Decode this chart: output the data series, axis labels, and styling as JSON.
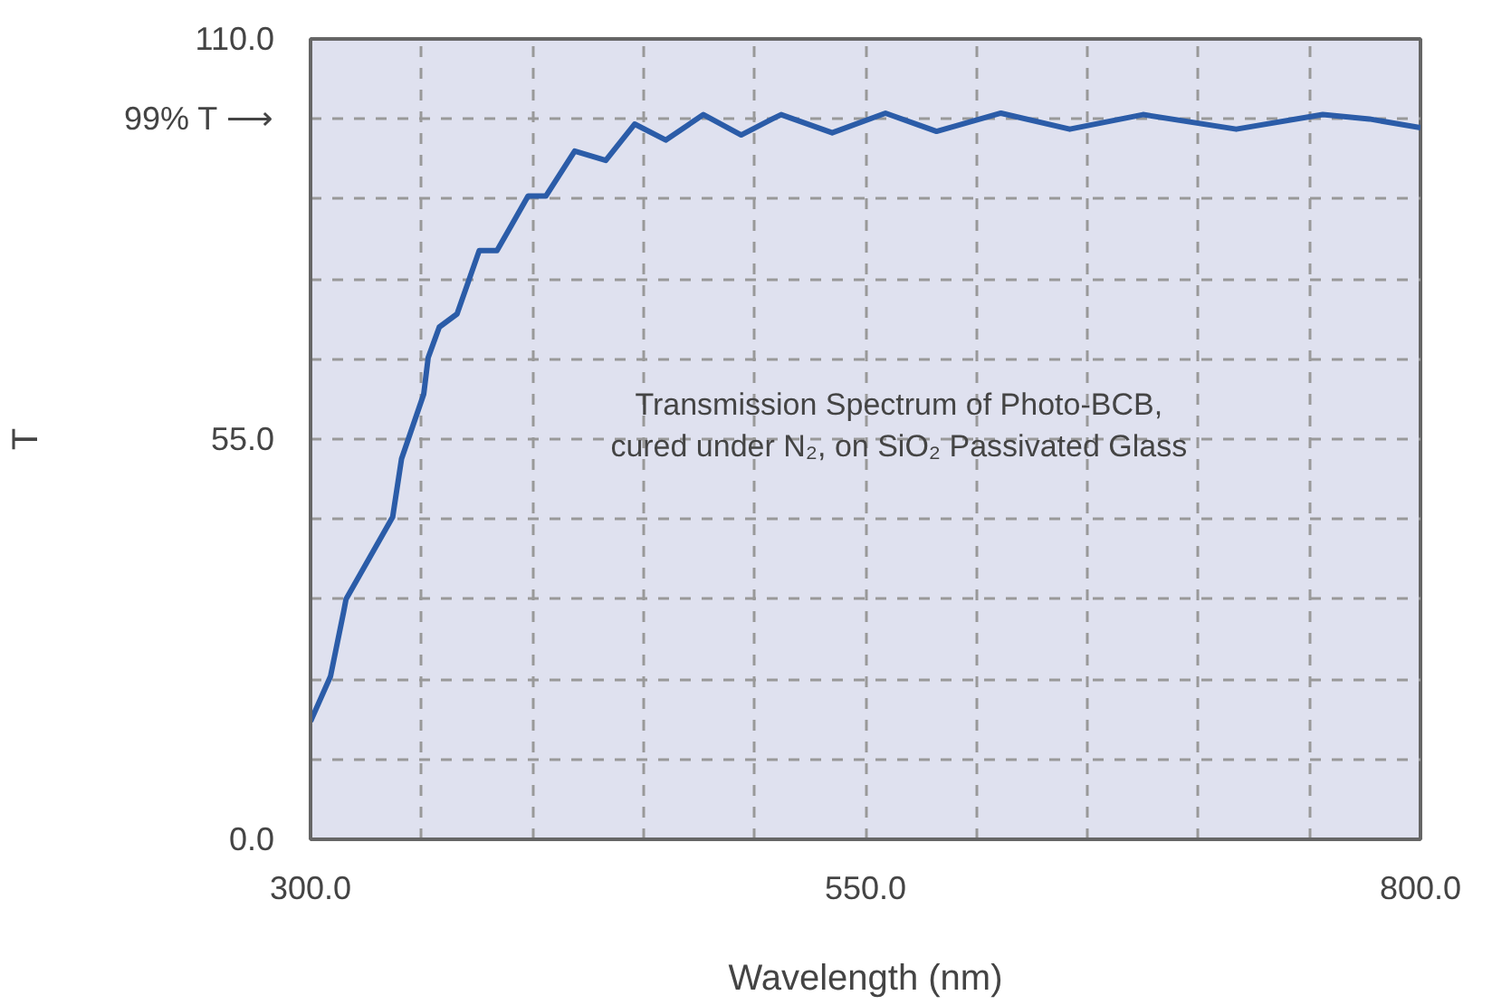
{
  "chart_data": {
    "type": "line",
    "xlabel": "Wavelength (nm)",
    "ylabel": "T",
    "annotations": [
      "Transmission Spectrum of Photo-BCB,\ncured under N₂, on SiO₂ Passivated Glass"
    ],
    "series": [
      {
        "color": "#2b5ca8",
        "x": [
          300,
          309,
          315,
          316,
          337,
          341,
          351,
          353,
          358,
          366,
          376,
          384,
          398,
          406,
          419,
          433,
          446,
          460,
          477,
          494,
          508,
          512,
          535,
          559,
          582,
          611,
          642,
          675,
          717,
          756,
          777,
          800
        ],
        "values": [
          16.2,
          22.4,
          31.4,
          33,
          44.3,
          52.3,
          61.2,
          66.2,
          70.4,
          72.2,
          80.9,
          80.9,
          88.4,
          88.4,
          94.6,
          93.3,
          98.3,
          96.1,
          99.6,
          96.8,
          99,
          99.6,
          97.1,
          99.8,
          97.3,
          99.8,
          97.6,
          99.6,
          97.6,
          99.6,
          99,
          97.8
        ]
      }
    ],
    "xlim": [
      300,
      800
    ],
    "ylim": [
      0,
      110
    ],
    "xticks": [
      {
        "value": 300,
        "label": "300.0"
      },
      {
        "value": 350,
        "label": null
      },
      {
        "value": 400,
        "label": null
      },
      {
        "value": 450,
        "label": null
      },
      {
        "value": 500,
        "label": null
      },
      {
        "value": 550,
        "label": "550.0"
      },
      {
        "value": 600,
        "label": null
      },
      {
        "value": 650,
        "label": null
      },
      {
        "value": 700,
        "label": null
      },
      {
        "value": 750,
        "label": null
      },
      {
        "value": 800,
        "label": "800.0"
      }
    ],
    "yticks": [
      {
        "value": 0,
        "label": "0.0"
      },
      {
        "value": 11,
        "label": null
      },
      {
        "value": 22,
        "label": null
      },
      {
        "value": 33,
        "label": null
      },
      {
        "value": 44,
        "label": null
      },
      {
        "value": 55,
        "label": "55.0"
      },
      {
        "value": 66,
        "label": null
      },
      {
        "value": 77,
        "label": null
      },
      {
        "value": 88,
        "label": null
      },
      {
        "value": 99,
        "label": "99% T ⟶"
      },
      {
        "value": 110,
        "label": "110.0"
      }
    ],
    "grid": true,
    "marker": "none",
    "line_style": "solid"
  }
}
